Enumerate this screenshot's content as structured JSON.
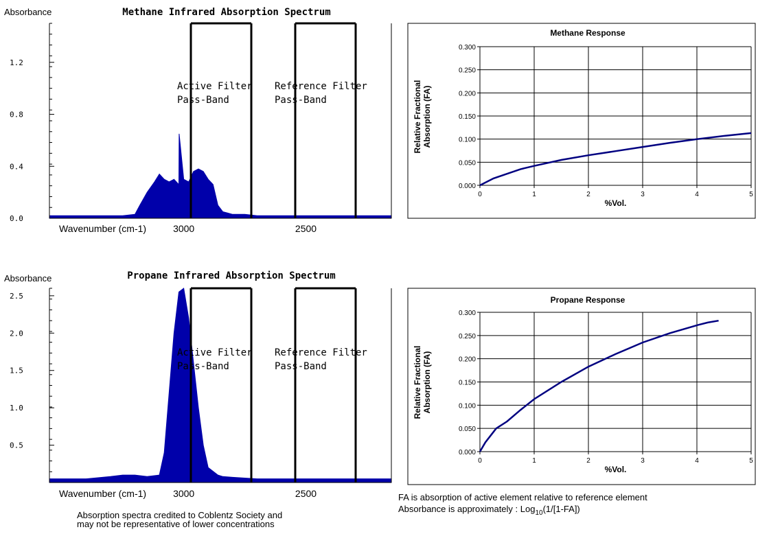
{
  "chart_data": [
    {
      "type": "area",
      "title": "Methane Infrared Absorption Spectrum",
      "ylabel": "Absorbance",
      "xlabel": "Wavenumber (cm-1)",
      "ytick_labels": [
        "1.2",
        "0.8",
        "0.4",
        "0.0"
      ],
      "yticks": [
        1.2,
        0.8,
        0.4,
        0.0
      ],
      "ylim": [
        0,
        1.5
      ],
      "xtick_labels": [
        "3000",
        "2500"
      ],
      "xticks": [
        3000,
        2500
      ],
      "xlim": [
        3550,
        2150
      ],
      "annotations": [
        {
          "line1": "Active Filter",
          "line2": "Pass-Band"
        },
        {
          "line1": "Reference Filter",
          "line2": "Pass-Band"
        }
      ],
      "series": [
        {
          "x": [
            3550,
            3300,
            3250,
            3200,
            3180,
            3150,
            3120,
            3100,
            3080,
            3060,
            3040,
            3020,
            3019,
            3000,
            2980,
            2960,
            2940,
            2920,
            2900,
            2880,
            2860,
            2840,
            2820,
            2800,
            2750,
            2700,
            2600,
            2500,
            2400,
            2300,
            2200,
            2150
          ],
          "y": [
            0.02,
            0.02,
            0.02,
            0.03,
            0.1,
            0.2,
            0.28,
            0.34,
            0.3,
            0.28,
            0.3,
            0.26,
            0.65,
            0.3,
            0.28,
            0.36,
            0.38,
            0.36,
            0.3,
            0.26,
            0.1,
            0.05,
            0.04,
            0.03,
            0.03,
            0.02,
            0.02,
            0.02,
            0.02,
            0.02,
            0.02,
            0.02
          ]
        }
      ],
      "color": "#0000aa"
    },
    {
      "type": "line",
      "title": "Methane Response",
      "ylabel_lines": [
        "Relative Fractional",
        "Absorption (FA)"
      ],
      "xlabel": "%Vol.",
      "ytick_labels": [
        "0.300",
        "0.250",
        "0.200",
        "0.150",
        "0.100",
        "0.050",
        "0.000"
      ],
      "yticks": [
        0.3,
        0.25,
        0.2,
        0.15,
        0.1,
        0.05,
        0.0
      ],
      "ylim": [
        0,
        0.3
      ],
      "xtick_labels": [
        "0",
        "1",
        "2",
        "3",
        "4",
        "5"
      ],
      "xticks": [
        0,
        1,
        2,
        3,
        4,
        5
      ],
      "xlim": [
        0,
        5
      ],
      "grid": true,
      "series": [
        {
          "x": [
            0,
            0.25,
            0.5,
            0.75,
            1.0,
            1.5,
            2.0,
            2.5,
            3.0,
            3.5,
            4.0,
            4.5,
            5.0
          ],
          "y": [
            0.0,
            0.015,
            0.025,
            0.035,
            0.042,
            0.055,
            0.065,
            0.074,
            0.083,
            0.092,
            0.1,
            0.107,
            0.113
          ]
        }
      ],
      "color": "#000080"
    },
    {
      "type": "area",
      "title": "Propane Infrared Absorption Spectrum",
      "ylabel": "Absorbance",
      "xlabel": "Wavenumber (cm-1)",
      "ytick_labels": [
        "2.5",
        "2.0",
        "1.5",
        "1.0",
        "0.5"
      ],
      "yticks": [
        2.5,
        2.0,
        1.5,
        1.0,
        0.5
      ],
      "ylim": [
        0,
        2.6
      ],
      "xtick_labels": [
        "3000",
        "2500"
      ],
      "xticks": [
        3000,
        2500
      ],
      "xlim": [
        3550,
        2150
      ],
      "annotations": [
        {
          "line1": "Active Filter",
          "line2": "Pass-Band"
        },
        {
          "line1": "Reference Filter",
          "line2": "Pass-Band"
        }
      ],
      "series": [
        {
          "x": [
            3550,
            3400,
            3300,
            3250,
            3200,
            3150,
            3100,
            3080,
            3060,
            3040,
            3020,
            3000,
            2980,
            2960,
            2940,
            2920,
            2900,
            2880,
            2860,
            2840,
            2800,
            2700,
            2600,
            2500,
            2400,
            2300,
            2200,
            2150
          ],
          "y": [
            0.05,
            0.05,
            0.08,
            0.1,
            0.1,
            0.08,
            0.1,
            0.4,
            1.2,
            2.0,
            2.55,
            2.6,
            2.2,
            1.6,
            1.0,
            0.5,
            0.2,
            0.15,
            0.1,
            0.08,
            0.07,
            0.05,
            0.05,
            0.05,
            0.05,
            0.05,
            0.05,
            0.05
          ]
        }
      ],
      "color": "#0000aa"
    },
    {
      "type": "line",
      "title": "Propane Response",
      "ylabel_lines": [
        "Relative Fractional",
        "Absorption (FA)"
      ],
      "xlabel": "%Vol.",
      "ytick_labels": [
        "0.300",
        "0.250",
        "0.200",
        "0.150",
        "0.100",
        "0.050",
        "0.000"
      ],
      "yticks": [
        0.3,
        0.25,
        0.2,
        0.15,
        0.1,
        0.05,
        0.0
      ],
      "ylim": [
        0,
        0.3
      ],
      "xtick_labels": [
        "0",
        "1",
        "2",
        "3",
        "4",
        "5"
      ],
      "xticks": [
        0,
        1,
        2,
        3,
        4,
        5
      ],
      "xlim": [
        0,
        5
      ],
      "grid": true,
      "series": [
        {
          "x": [
            0,
            0.1,
            0.2,
            0.3,
            0.5,
            0.75,
            1.0,
            1.5,
            2.0,
            2.5,
            3.0,
            3.5,
            4.0,
            4.2,
            4.4
          ],
          "y": [
            0.0,
            0.02,
            0.035,
            0.05,
            0.065,
            0.09,
            0.113,
            0.15,
            0.183,
            0.21,
            0.235,
            0.255,
            0.272,
            0.278,
            0.282
          ]
        }
      ],
      "color": "#000080"
    }
  ],
  "notes": {
    "credit_line1": "Absorption spectra credited to Coblentz Society and",
    "credit_line2": "may not be representative of lower concentrations",
    "fa_line": "FA is absorption of active element relative to reference element",
    "abs_prefix": "Absorbance is approximately :  Log",
    "abs_sub": "10",
    "abs_suffix": "(1/[1-FA])"
  }
}
